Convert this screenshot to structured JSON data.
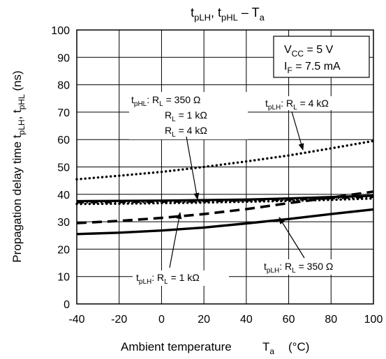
{
  "chart_data": {
    "type": "line",
    "title": {
      "base1": "t",
      "sub1": "pLH",
      "mid": ", t",
      "sub2": "pHL",
      "tail": " – T",
      "sub3": "a"
    },
    "xlabel": {
      "text": "Ambient temperature",
      "symbol": "T",
      "symbol_sub": "a",
      "unit": "(°C)"
    },
    "ylabel": {
      "text": "Propagation delay time",
      "sym1": "t",
      "sub1": "pLH",
      "mid": ", t",
      "sub2": "pHL",
      "unit": "(ns)"
    },
    "xlim": [
      -40,
      100
    ],
    "ylim": [
      0,
      100
    ],
    "x_ticks": [
      "-40",
      "-20",
      "0",
      "20",
      "40",
      "60",
      "80",
      "100"
    ],
    "y_ticks": [
      "0",
      "10",
      "20",
      "30",
      "40",
      "50",
      "60",
      "70",
      "80",
      "90",
      "100"
    ],
    "grid": true,
    "conditions": {
      "vcc": {
        "sym": "V",
        "sub": "CC",
        "val": " = 5 V"
      },
      "if": {
        "sym": "I",
        "sub": "F",
        "val": " = 7.5 mA"
      }
    },
    "series": [
      {
        "name": "tpHL: RL = 350 Ω",
        "style": "solid",
        "color": "#000000",
        "x": [
          -40,
          -20,
          0,
          20,
          40,
          60,
          80,
          100
        ],
        "y": [
          37.5,
          37.6,
          37.7,
          37.9,
          38.1,
          38.5,
          39,
          39.5
        ]
      },
      {
        "name": "tpHL: RL = 1 kΩ",
        "style": "dashdot",
        "color": "#000000",
        "x": [
          -40,
          -20,
          0,
          20,
          40,
          60,
          80,
          100
        ],
        "y": [
          37,
          37.1,
          37.2,
          37.4,
          37.7,
          38,
          38.5,
          39
        ]
      },
      {
        "name": "tpHL: RL = 4 kΩ",
        "style": "dotted",
        "color": "#000000",
        "x": [
          -40,
          -20,
          0,
          20,
          40,
          60,
          80,
          100
        ],
        "y": [
          36.5,
          36.6,
          36.8,
          37,
          37.3,
          37.6,
          38,
          38.5
        ]
      },
      {
        "name": "tpLH: RL = 4 kΩ",
        "style": "dotted",
        "color": "#000000",
        "x": [
          -40,
          -20,
          0,
          20,
          40,
          60,
          80,
          100
        ],
        "y": [
          45.5,
          46.8,
          48.2,
          50,
          52,
          54.2,
          56.8,
          59.5
        ]
      },
      {
        "name": "tpLH: RL = 1 kΩ",
        "style": "dashed",
        "color": "#000000",
        "x": [
          -40,
          -20,
          0,
          20,
          40,
          60,
          80,
          100
        ],
        "y": [
          29.5,
          30.3,
          31.4,
          32.8,
          34.6,
          36.8,
          38.8,
          41
        ]
      },
      {
        "name": "tpLH: RL = 350 Ω",
        "style": "solid",
        "color": "#000000",
        "x": [
          -40,
          -20,
          0,
          20,
          40,
          60,
          80,
          100
        ],
        "y": [
          25.5,
          26,
          26.8,
          27.9,
          29.4,
          31,
          32.8,
          34.5
        ]
      }
    ],
    "annotations": [
      {
        "lines": [
          {
            "t": "t",
            "s": "pHL",
            "r": ": R",
            "s2": "L",
            "r2": " = 350 Ω"
          },
          {
            "t": "R",
            "s": "L",
            "r": " = 1 kΩ"
          },
          {
            "t": "R",
            "s": "L",
            "r": " = 4 kΩ"
          }
        ]
      },
      {
        "lines": [
          {
            "t": "t",
            "s": "pLH",
            "r": ": R",
            "s2": "L",
            "r2": " = 4 kΩ"
          }
        ]
      },
      {
        "lines": [
          {
            "t": "t",
            "s": "pLH",
            "r": ": R",
            "s2": "L",
            "r2": " = 1 kΩ"
          }
        ]
      },
      {
        "lines": [
          {
            "t": "t",
            "s": "pLH",
            "r": ": R",
            "s2": "L",
            "r2": " = 350 Ω"
          }
        ]
      }
    ]
  }
}
